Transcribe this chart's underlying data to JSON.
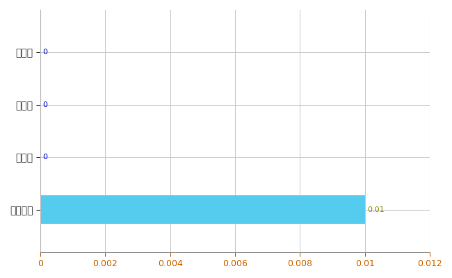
{
  "categories": [
    "全国平均",
    "県最大",
    "県平均",
    "敦賀市"
  ],
  "values": [
    0.01,
    0,
    0,
    0
  ],
  "bar_color": "#55CCEE",
  "value_labels": [
    "0.01",
    "0",
    "0",
    "0"
  ],
  "value_label_color_nonzero": "#888800",
  "value_label_color_zero": "#0000CC",
  "xlim": [
    0,
    0.012
  ],
  "xticks": [
    0,
    0.002,
    0.004,
    0.006,
    0.008,
    0.01,
    0.012
  ],
  "grid_color": "#CCCCCC",
  "background_color": "#FFFFFF",
  "bar_height": 0.55,
  "figsize": [
    6.5,
    4.0
  ],
  "dpi": 100
}
